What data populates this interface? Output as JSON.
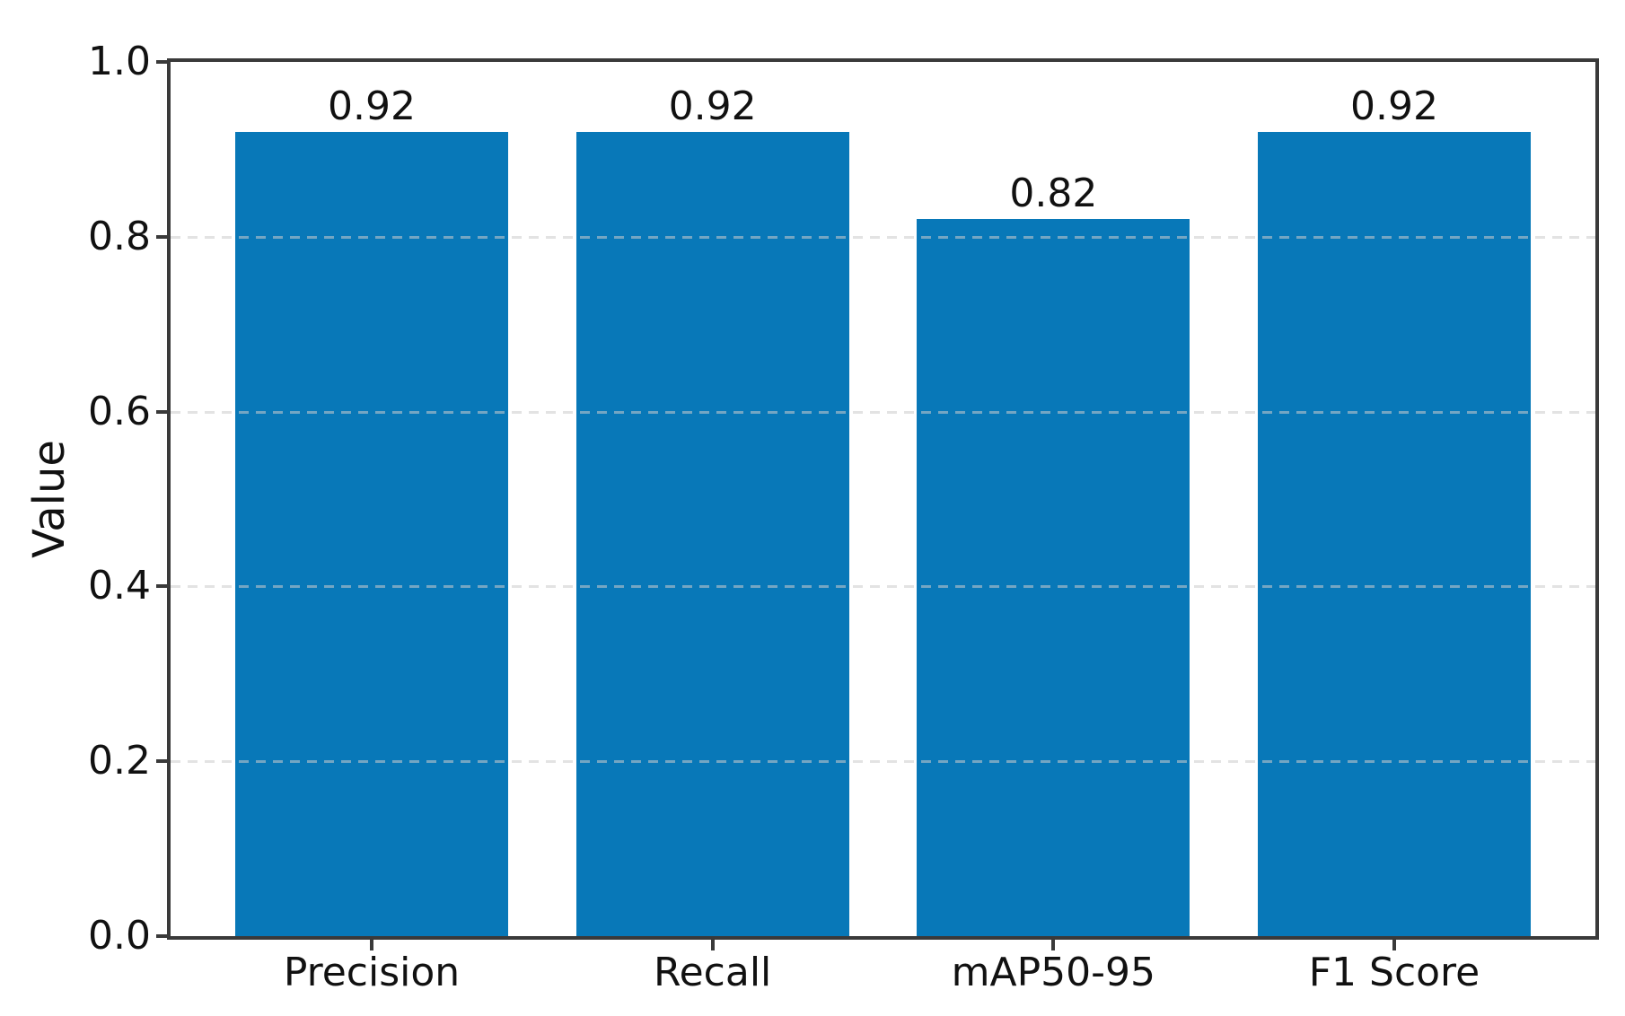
{
  "chart_data": {
    "type": "bar",
    "title": "",
    "xlabel": "",
    "ylabel": "Value",
    "categories": [
      "Precision",
      "Recall",
      "mAP50-95",
      "F1 Score"
    ],
    "values": [
      0.92,
      0.92,
      0.82,
      0.92
    ],
    "bar_labels": [
      "0.92",
      "0.92",
      "0.82",
      "0.92"
    ],
    "ylim": [
      0.0,
      1.0
    ],
    "yticks": [
      "0.0",
      "0.2",
      "0.4",
      "0.6",
      "0.8",
      "1.0"
    ],
    "grid": "horizontal dashed gridlines at 0.2 steps, drawn over bars",
    "legend": "none",
    "colors": {
      "bar_fill": "#0878b8",
      "gridline": "#cccccc",
      "spine": "#3a3a3a",
      "text": "#111111",
      "background": "#ffffff"
    }
  }
}
